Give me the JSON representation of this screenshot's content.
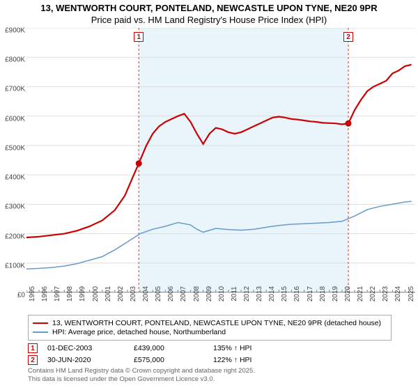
{
  "title": {
    "line1": "13, WENTWORTH COURT, PONTELAND, NEWCASTLE UPON TYNE, NE20 9PR",
    "line2": "Price paid vs. HM Land Registry's House Price Index (HPI)"
  },
  "chart": {
    "type": "line",
    "background_color": "#ffffff",
    "grid_color": "#dddddd",
    "shaded_color": "#d9edf7",
    "dashed_color": "#e05050",
    "x_start": 1995,
    "x_end": 2025.8,
    "x_ticks": [
      1995,
      1996,
      1997,
      1998,
      1999,
      2000,
      2001,
      2002,
      2003,
      2004,
      2005,
      2006,
      2007,
      2008,
      2009,
      2010,
      2011,
      2012,
      2013,
      2014,
      2015,
      2016,
      2017,
      2018,
      2019,
      2020,
      2021,
      2022,
      2023,
      2024,
      2025
    ],
    "y_min": 0,
    "y_max": 900000,
    "y_ticks": [
      {
        "v": 0,
        "label": "£0"
      },
      {
        "v": 100000,
        "label": "£100K"
      },
      {
        "v": 200000,
        "label": "£200K"
      },
      {
        "v": 300000,
        "label": "£300K"
      },
      {
        "v": 400000,
        "label": "£400K"
      },
      {
        "v": 500000,
        "label": "£500K"
      },
      {
        "v": 600000,
        "label": "£600K"
      },
      {
        "v": 700000,
        "label": "£700K"
      },
      {
        "v": 800000,
        "label": "£800K"
      },
      {
        "v": 900000,
        "label": "£900K"
      }
    ],
    "shaded_ranges": [
      {
        "x0": 2003.9,
        "x1": 2020.5
      }
    ],
    "event_lines": [
      {
        "x": 2003.9,
        "marker": "1"
      },
      {
        "x": 2020.5,
        "marker": "2"
      }
    ],
    "series_red": {
      "color": "#cc0000",
      "width": 2.2,
      "points": [
        [
          1995,
          187000
        ],
        [
          1996,
          190000
        ],
        [
          1997,
          195000
        ],
        [
          1998,
          200000
        ],
        [
          1999,
          210000
        ],
        [
          2000,
          225000
        ],
        [
          2001,
          245000
        ],
        [
          2002,
          280000
        ],
        [
          2002.8,
          330000
        ],
        [
          2003.4,
          390000
        ],
        [
          2003.9,
          439000
        ],
        [
          2004.5,
          500000
        ],
        [
          2005,
          540000
        ],
        [
          2005.5,
          565000
        ],
        [
          2006,
          580000
        ],
        [
          2006.5,
          590000
        ],
        [
          2007,
          600000
        ],
        [
          2007.5,
          608000
        ],
        [
          2008,
          580000
        ],
        [
          2008.5,
          540000
        ],
        [
          2009,
          505000
        ],
        [
          2009.5,
          540000
        ],
        [
          2010,
          560000
        ],
        [
          2010.5,
          555000
        ],
        [
          2011,
          545000
        ],
        [
          2011.5,
          540000
        ],
        [
          2012,
          545000
        ],
        [
          2012.5,
          555000
        ],
        [
          2013,
          565000
        ],
        [
          2013.5,
          575000
        ],
        [
          2014,
          585000
        ],
        [
          2014.5,
          595000
        ],
        [
          2015,
          598000
        ],
        [
          2015.5,
          595000
        ],
        [
          2016,
          590000
        ],
        [
          2016.5,
          588000
        ],
        [
          2017,
          585000
        ],
        [
          2017.5,
          582000
        ],
        [
          2018,
          580000
        ],
        [
          2018.5,
          577000
        ],
        [
          2019,
          576000
        ],
        [
          2019.5,
          575000
        ],
        [
          2020,
          572000
        ],
        [
          2020.5,
          575000
        ],
        [
          2021,
          620000
        ],
        [
          2021.5,
          655000
        ],
        [
          2022,
          685000
        ],
        [
          2022.5,
          700000
        ],
        [
          2023,
          710000
        ],
        [
          2023.5,
          720000
        ],
        [
          2024,
          745000
        ],
        [
          2024.5,
          755000
        ],
        [
          2025,
          770000
        ],
        [
          2025.5,
          775000
        ]
      ]
    },
    "series_blue": {
      "color": "#6699cc",
      "width": 1.5,
      "points": [
        [
          1995,
          80000
        ],
        [
          1996,
          82000
        ],
        [
          1997,
          85000
        ],
        [
          1998,
          90000
        ],
        [
          1999,
          98000
        ],
        [
          2000,
          110000
        ],
        [
          2001,
          122000
        ],
        [
          2002,
          145000
        ],
        [
          2003,
          172000
        ],
        [
          2004,
          200000
        ],
        [
          2005,
          215000
        ],
        [
          2006,
          225000
        ],
        [
          2007,
          238000
        ],
        [
          2008,
          230000
        ],
        [
          2008.5,
          215000
        ],
        [
          2009,
          205000
        ],
        [
          2010,
          218000
        ],
        [
          2011,
          214000
        ],
        [
          2012,
          212000
        ],
        [
          2013,
          215000
        ],
        [
          2014,
          222000
        ],
        [
          2015,
          228000
        ],
        [
          2016,
          232000
        ],
        [
          2017,
          234000
        ],
        [
          2018,
          236000
        ],
        [
          2019,
          238000
        ],
        [
          2020,
          242000
        ],
        [
          2021,
          260000
        ],
        [
          2022,
          282000
        ],
        [
          2023,
          293000
        ],
        [
          2024,
          300000
        ],
        [
          2025,
          308000
        ],
        [
          2025.5,
          310000
        ]
      ]
    },
    "markers": [
      {
        "x": 2003.9,
        "y": 439000,
        "n": "1"
      },
      {
        "x": 2020.5,
        "y": 575000,
        "n": "2"
      }
    ]
  },
  "legend": {
    "rows": [
      {
        "color": "#cc0000",
        "label": "13, WENTWORTH COURT, PONTELAND, NEWCASTLE UPON TYNE, NE20 9PR (detached house)"
      },
      {
        "color": "#6699cc",
        "label": "HPI: Average price, detached house, Northumberland"
      }
    ]
  },
  "events": [
    {
      "n": "1",
      "date": "01-DEC-2003",
      "price": "£439,000",
      "pct": "135% ↑ HPI"
    },
    {
      "n": "2",
      "date": "30-JUN-2020",
      "price": "£575,000",
      "pct": "122% ↑ HPI"
    }
  ],
  "footer": {
    "line1": "Contains HM Land Registry data © Crown copyright and database right 2025.",
    "line2": "This data is licensed under the Open Government Licence v3.0."
  }
}
